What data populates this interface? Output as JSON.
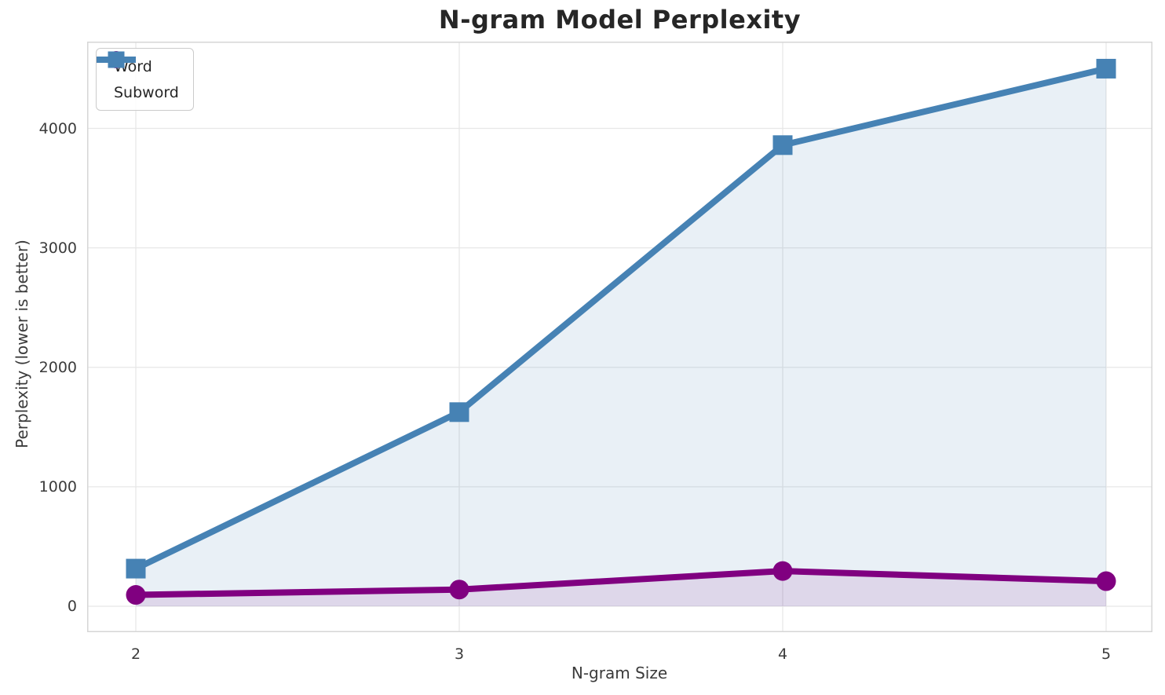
{
  "chart_data": {
    "type": "line",
    "title": "N-gram Model Perplexity",
    "xlabel": "N-gram Size",
    "ylabel": "Perplexity (lower is better)",
    "x": [
      2,
      3,
      4,
      5
    ],
    "xtick_labels": [
      "2",
      "3",
      "4",
      "5"
    ],
    "yticks": [
      0,
      1000,
      2000,
      3000,
      4000
    ],
    "ytick_labels": [
      "0",
      "1000",
      "2000",
      "3000",
      "4000"
    ],
    "ylim": [
      -215,
      4725
    ],
    "xlim": [
      1.85,
      5.15
    ],
    "grid": true,
    "legend_position": "upper-left",
    "area_fill_to": 0,
    "series": [
      {
        "name": "Word",
        "values": [
          95,
          140,
          295,
          210
        ],
        "color": "#800080",
        "marker": "circle",
        "fill_alpha": 0.1
      },
      {
        "name": "Subword",
        "values": [
          315,
          1625,
          3860,
          4500
        ],
        "color": "#4682B4",
        "marker": "square",
        "fill_alpha": 0.12
      }
    ],
    "style": {
      "grid_color": "#e7e7e7",
      "spine_color": "#d6d6d6",
      "title_color": "#262626",
      "tick_color": "#3b3b3b",
      "background": "#ffffff"
    }
  }
}
